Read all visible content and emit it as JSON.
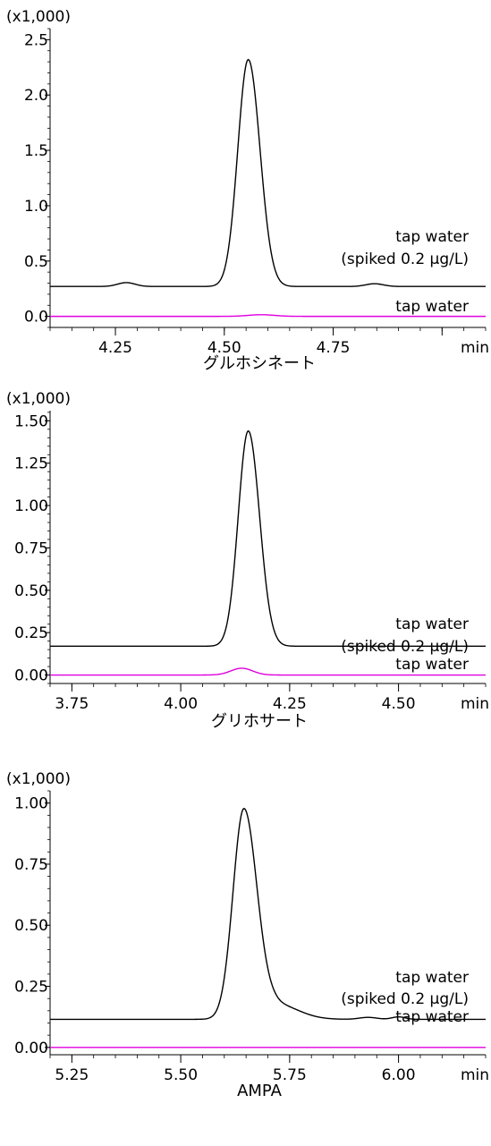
{
  "chart_data": [
    {
      "type": "line",
      "title": "グルホシネート",
      "y_multiplier_label": "(x1,000)",
      "xlabel": "min",
      "xlim": [
        4.1,
        5.1
      ],
      "ylim": [
        -0.1,
        2.6
      ],
      "x_ticks": [
        4.25,
        4.5,
        4.75
      ],
      "x_tick_labels": [
        "4.25",
        "4.50",
        "4.75"
      ],
      "y_ticks": [
        0.0,
        0.5,
        1.0,
        1.5,
        2.0,
        2.5
      ],
      "y_tick_labels": [
        "0.0",
        "0.5",
        "1.0",
        "1.5",
        "2.0",
        "2.5"
      ],
      "grid": false,
      "series": [
        {
          "name": "tap water (spiked 0.2 µg/L)",
          "label_lines": [
            "tap water",
            "(spiked 0.2 µg/L)"
          ],
          "color": "#000000",
          "baseline": 0.27,
          "peaks": [
            {
              "center": 4.555,
              "height": 2.05,
              "sigma_left": 0.024,
              "sigma_right": 0.027
            },
            {
              "center": 4.275,
              "height": 0.035,
              "sigma_left": 0.02,
              "sigma_right": 0.02
            },
            {
              "center": 4.845,
              "height": 0.025,
              "sigma_left": 0.02,
              "sigma_right": 0.02
            }
          ]
        },
        {
          "name": "tap water",
          "label_lines": [
            "tap water"
          ],
          "color": "#e000e0",
          "baseline": 0.0,
          "peaks": [
            {
              "center": 4.585,
              "height": 0.015,
              "sigma_left": 0.03,
              "sigma_right": 0.03
            }
          ]
        }
      ]
    },
    {
      "type": "line",
      "title": "グリホサート",
      "y_multiplier_label": "(x1,000)",
      "xlabel": "min",
      "xlim": [
        3.7,
        4.7
      ],
      "ylim": [
        -0.05,
        1.56
      ],
      "x_ticks": [
        3.75,
        4.0,
        4.25,
        4.5
      ],
      "x_tick_labels": [
        "3.75",
        "4.00",
        "4.25",
        "4.50"
      ],
      "y_ticks": [
        0.0,
        0.25,
        0.5,
        0.75,
        1.0,
        1.25,
        1.5
      ],
      "y_tick_labels": [
        "0.00",
        "0.25",
        "0.50",
        "0.75",
        "1.00",
        "1.25",
        "1.50"
      ],
      "grid": false,
      "series": [
        {
          "name": "tap water (spiked 0.2 µg/L)",
          "label_lines": [
            "tap water",
            "(spiked 0.2 µg/L)"
          ],
          "color": "#000000",
          "baseline": 0.17,
          "peaks": [
            {
              "center": 4.155,
              "height": 1.27,
              "sigma_left": 0.023,
              "sigma_right": 0.026
            }
          ]
        },
        {
          "name": "tap water",
          "label_lines": [
            "tap water"
          ],
          "color": "#e000e0",
          "baseline": 0.0,
          "peaks": [
            {
              "center": 4.14,
              "height": 0.04,
              "sigma_left": 0.025,
              "sigma_right": 0.025
            }
          ]
        }
      ]
    },
    {
      "type": "line",
      "title": "AMPA",
      "y_multiplier_label": "(x1,000)",
      "xlabel": "min",
      "xlim": [
        5.2,
        6.2
      ],
      "ylim": [
        -0.03,
        1.05
      ],
      "x_ticks": [
        5.25,
        5.5,
        5.75,
        6.0
      ],
      "x_tick_labels": [
        "5.25",
        "5.50",
        "5.75",
        "6.00"
      ],
      "y_ticks": [
        0.0,
        0.25,
        0.5,
        0.75,
        1.0
      ],
      "y_tick_labels": [
        "0.00",
        "0.25",
        "0.50",
        "0.75",
        "1.00"
      ],
      "grid": false,
      "series": [
        {
          "name": "tap water (spiked 0.2 µg/L)",
          "label_lines": [
            "tap water",
            "(spiked 0.2 µg/L)"
          ],
          "color": "#000000",
          "baseline": 0.115,
          "peaks": [
            {
              "center": 5.645,
              "height": 0.86,
              "sigma_left": 0.025,
              "sigma_right": 0.03
            },
            {
              "center": 5.72,
              "height": 0.06,
              "sigma_left": 0.03,
              "sigma_right": 0.05
            },
            {
              "center": 5.93,
              "height": 0.008,
              "sigma_left": 0.02,
              "sigma_right": 0.02
            },
            {
              "center": 6.0,
              "height": 0.01,
              "sigma_left": 0.015,
              "sigma_right": 0.015
            }
          ]
        },
        {
          "name": "tap water",
          "label_lines": [
            "tap water"
          ],
          "color": "#e000e0",
          "baseline": 0.0,
          "peaks": []
        }
      ]
    }
  ]
}
